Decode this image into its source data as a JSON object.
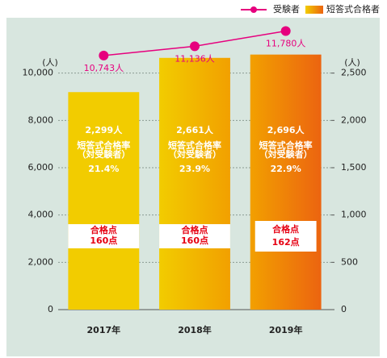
{
  "chart_data": {
    "type": "bar-line",
    "categories": [
      "2017年",
      "2018年",
      "2019年"
    ],
    "series": [
      {
        "name": "受験者",
        "color": "#e6007e",
        "axis": "y",
        "values": [
          10743,
          11136,
          11780
        ],
        "value_labels": [
          "10,743人",
          "11,136人",
          "11,780人"
        ]
      },
      {
        "name": "短答式合格者",
        "colors": [
          "#f2cc00",
          "#f2a000",
          "#ec6410"
        ],
        "axis": "y2",
        "values": [
          2299,
          2661,
          2696
        ],
        "value_labels": [
          "2,299人",
          "2,661人",
          "2,696人"
        ]
      }
    ],
    "pass_rate": {
      "label": "短答式合格率",
      "sublabel": "（対受験者）",
      "values": [
        21.4,
        23.9,
        22.9
      ],
      "value_labels": [
        "21.4%",
        "23.9%",
        "22.9%"
      ]
    },
    "passing_score": {
      "label": "合格点",
      "values": [
        160,
        160,
        162
      ],
      "value_labels": [
        "160点",
        "160点",
        "162点"
      ]
    },
    "y_unit": "(人)",
    "y2_unit": "(人)",
    "ylim": [
      0,
      12000
    ],
    "yticks": [
      0,
      {
        "value": 2000,
        "label": "2,000"
      },
      {
        "value": 4000,
        "label": "4,000"
      },
      {
        "value": 6000,
        "label": "6,000"
      },
      {
        "value": 8000,
        "label": "8,000"
      },
      {
        "value": 10000,
        "label": "10,000"
      }
    ],
    "y2lim": [
      0,
      3000
    ],
    "y2ticks": [
      0,
      500,
      {
        "value": 1000,
        "label": "1,000"
      },
      {
        "value": 1500,
        "label": "1,500"
      },
      {
        "value": 2000,
        "label": "2,000"
      },
      {
        "value": 2500,
        "label": "2,500"
      }
    ],
    "grid": true
  }
}
